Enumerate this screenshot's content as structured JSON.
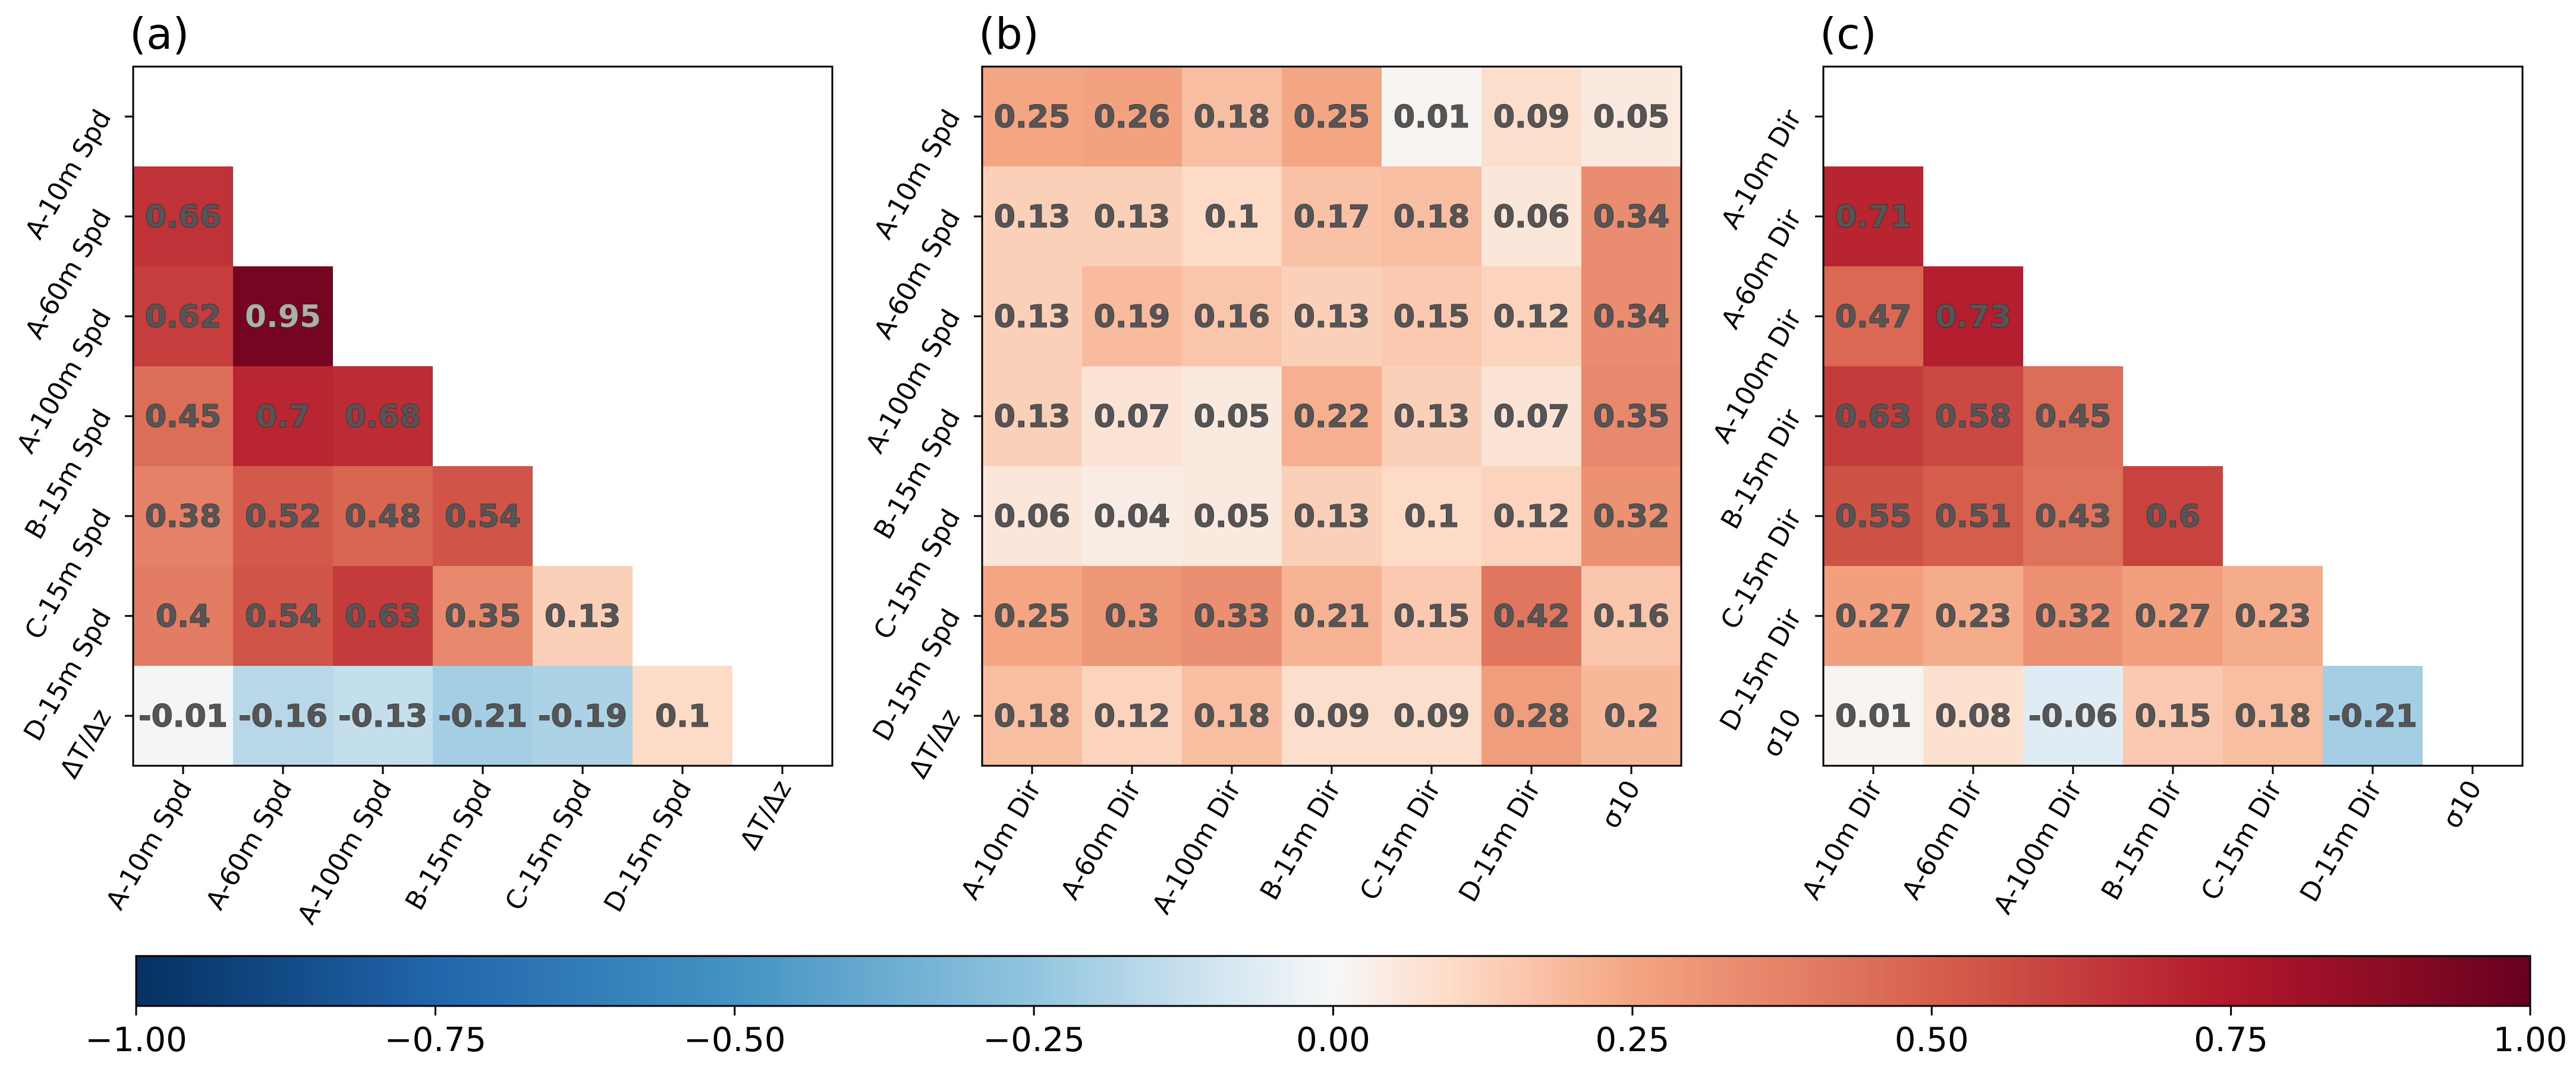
{
  "chart_data": [
    {
      "type": "heatmap",
      "title": "(a)",
      "mask": "upper-triangle",
      "rows": [
        "A-10m Spd",
        "A-60m Spd",
        "A-100m Spd",
        "B-15m Spd",
        "C-15m Spd",
        "D-15m Spd",
        "ΔT/Δz"
      ],
      "columns": [
        "A-10m Spd",
        "A-60m Spd",
        "A-100m Spd",
        "B-15m Spd",
        "C-15m Spd",
        "D-15m Spd",
        "ΔT/Δz"
      ],
      "values": [
        [
          null,
          null,
          null,
          null,
          null,
          null,
          null
        ],
        [
          0.66,
          null,
          null,
          null,
          null,
          null,
          null
        ],
        [
          0.62,
          0.95,
          null,
          null,
          null,
          null,
          null
        ],
        [
          0.45,
          0.7,
          0.68,
          null,
          null,
          null,
          null
        ],
        [
          0.38,
          0.52,
          0.48,
          0.54,
          null,
          null,
          null
        ],
        [
          0.4,
          0.54,
          0.63,
          0.35,
          0.13,
          null,
          null
        ],
        [
          -0.01,
          -0.16,
          -0.13,
          -0.21,
          -0.19,
          0.1,
          null
        ]
      ],
      "vmin": -1,
      "vmax": 1,
      "colormap": "RdBu_r"
    },
    {
      "type": "heatmap",
      "title": "(b)",
      "mask": "none",
      "rows": [
        "A-10m Spd",
        "A-60m Spd",
        "A-100m Spd",
        "B-15m Spd",
        "C-15m Spd",
        "D-15m Spd",
        "ΔT/Δz"
      ],
      "columns": [
        "A-10m Dir",
        "A-60m Dir",
        "A-100m Dir",
        "B-15m Dir",
        "C-15m Dir",
        "D-15m Dir",
        "σ10"
      ],
      "values": [
        [
          0.25,
          0.26,
          0.18,
          0.25,
          0.01,
          0.09,
          0.05
        ],
        [
          0.13,
          0.13,
          0.1,
          0.17,
          0.18,
          0.06,
          0.34
        ],
        [
          0.13,
          0.19,
          0.16,
          0.13,
          0.15,
          0.12,
          0.34
        ],
        [
          0.13,
          0.07,
          0.05,
          0.22,
          0.13,
          0.07,
          0.35
        ],
        [
          0.06,
          0.04,
          0.05,
          0.13,
          0.1,
          0.12,
          0.32
        ],
        [
          0.25,
          0.3,
          0.33,
          0.21,
          0.15,
          0.42,
          0.16
        ],
        [
          0.18,
          0.12,
          0.18,
          0.09,
          0.09,
          0.28,
          0.2
        ]
      ],
      "vmin": -1,
      "vmax": 1,
      "colormap": "RdBu_r"
    },
    {
      "type": "heatmap",
      "title": "(c)",
      "mask": "upper-triangle",
      "rows": [
        "A-10m Dir",
        "A-60m Dir",
        "A-100m Dir",
        "B-15m Dir",
        "C-15m Dir",
        "D-15m Dir",
        "σ10"
      ],
      "columns": [
        "A-10m Dir",
        "A-60m Dir",
        "A-100m Dir",
        "B-15m Dir",
        "C-15m Dir",
        "D-15m Dir",
        "σ10"
      ],
      "values": [
        [
          null,
          null,
          null,
          null,
          null,
          null,
          null
        ],
        [
          0.71,
          null,
          null,
          null,
          null,
          null,
          null
        ],
        [
          0.47,
          0.73,
          null,
          null,
          null,
          null,
          null
        ],
        [
          0.63,
          0.58,
          0.45,
          null,
          null,
          null,
          null
        ],
        [
          0.55,
          0.51,
          0.43,
          0.6,
          null,
          null,
          null
        ],
        [
          0.27,
          0.23,
          0.32,
          0.27,
          0.23,
          null,
          null
        ],
        [
          0.01,
          0.08,
          -0.06,
          0.15,
          0.18,
          -0.21,
          null
        ]
      ],
      "vmin": -1,
      "vmax": 1,
      "colormap": "RdBu_r"
    }
  ],
  "colorbar": {
    "min": -1.0,
    "max": 1.0,
    "ticks": [
      -1.0,
      -0.75,
      -0.5,
      -0.25,
      0.0,
      0.25,
      0.5,
      0.75,
      1.0
    ],
    "tick_labels": [
      "−1.00",
      "−0.75",
      "−0.50",
      "−0.25",
      "0.00",
      "0.25",
      "0.50",
      "0.75",
      "1.00"
    ],
    "orientation": "horizontal",
    "placement": "bottom"
  }
}
